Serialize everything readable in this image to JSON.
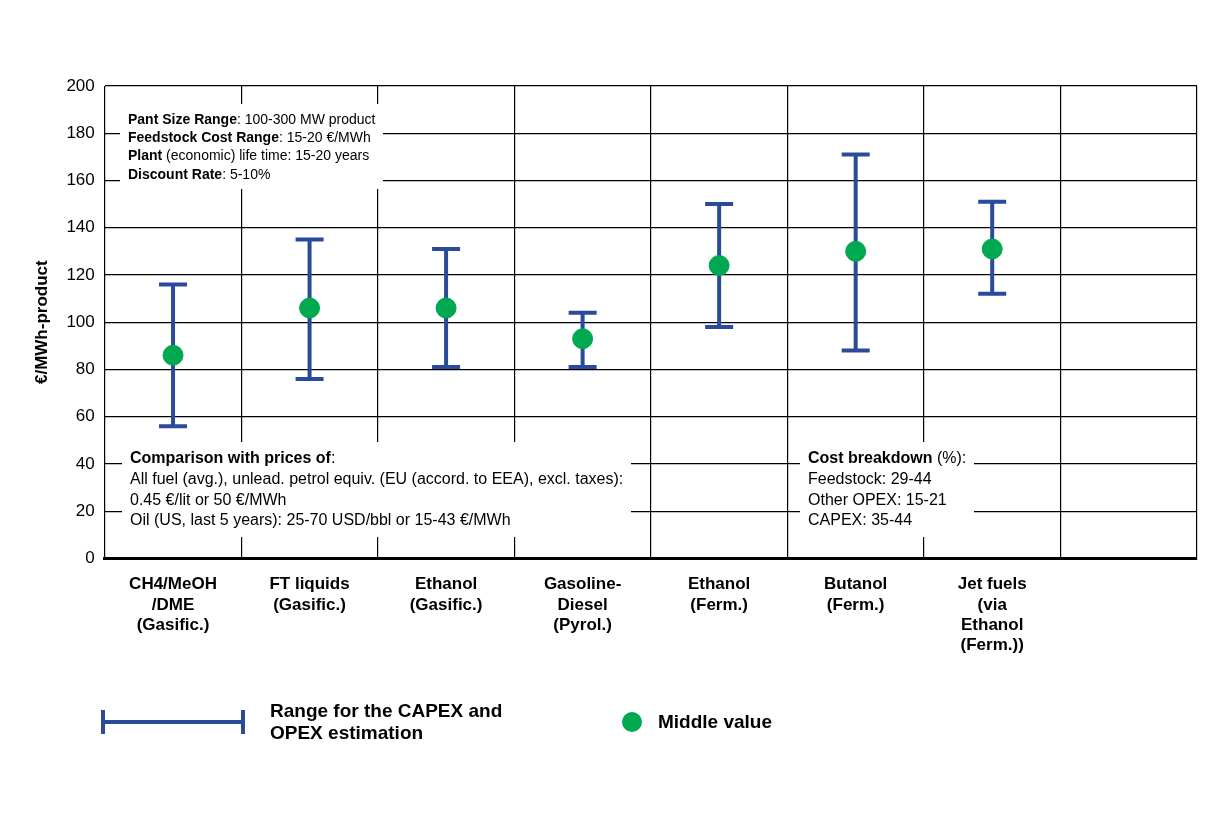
{
  "chart_data": {
    "type": "scatter",
    "ylabel": "€/MWh-product",
    "categories": [
      "CH4/MeOH\n/DME\n(Gasific.)",
      "FT liquids\n(Gasific.)",
      "Ethanol\n(Gasific.)",
      "Gasoline-\nDiesel\n(Pyrol.)",
      "Ethanol\n(Ferm.)",
      "Butanol\n(Ferm.)",
      "Jet fuels\n(via\nEthanol\n(Ferm.))",
      null
    ],
    "series": [
      {
        "name": "Middle value",
        "color": "#00a94f",
        "values": [
          86,
          106,
          106,
          93,
          124,
          130,
          131,
          null
        ],
        "errors": [
          [
            56,
            116
          ],
          [
            76,
            135
          ],
          [
            81,
            131
          ],
          [
            81,
            104
          ],
          [
            98,
            150
          ],
          [
            88,
            171
          ],
          [
            112,
            151
          ],
          null
        ]
      }
    ],
    "ylim": [
      0,
      200
    ],
    "yticks": [
      0,
      20,
      40,
      60,
      80,
      100,
      120,
      140,
      160,
      180,
      200
    ],
    "grid": true,
    "legend": "bottom",
    "marker": "circle",
    "annotations": [
      "Pant Size Range: 100-300 MW product",
      "Feedstock Cost Range: 15-20 €/MWh",
      "Plant (economic) life time: 15-20 years",
      "Discount Rate: 5-10%",
      "Comparison with prices of:",
      "All fuel (avg.), unlead. petrol equiv. (EU (accord. to EEA), excl. taxes):",
      "0.45 €/lit or 50 €/MWh",
      "Oil (US, last 5 years): 25-70 USD/bbl or 15-43 €/MWh",
      "Cost breakdown (%):",
      "Feedstock: 29-44",
      "Other OPEX: 15-21",
      "CAPEX: 35-44",
      "Range for the CAPEX and OPEX estimation"
    ]
  }
}
